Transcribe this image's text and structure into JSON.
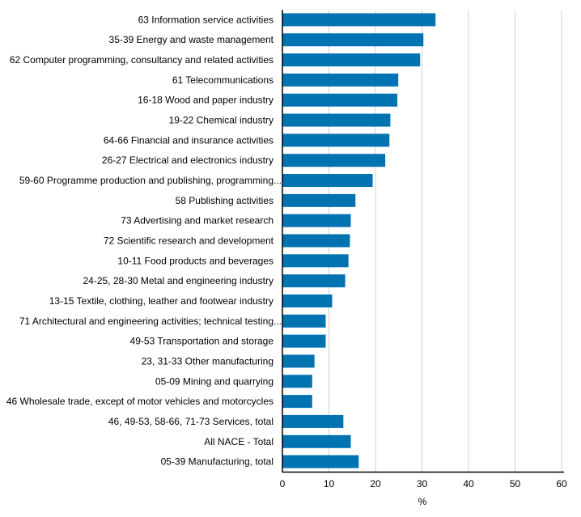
{
  "chart_data": {
    "type": "bar",
    "orientation": "horizontal",
    "categories": [
      "63 Information service activities",
      "35-39 Energy and waste management",
      "62 Computer programming, consultancy and related activities",
      "61 Telecommunications",
      "16-18 Wood and paper industry",
      "19-22 Chemical industry",
      "64-66 Financial and insurance activities",
      "26-27 Electrical and electronics industry",
      "59-60 Programme production and publishing, programming...",
      "58 Publishing activities",
      "73 Advertising and market research",
      "72 Scientific research and development",
      "10-11 Food products and beverages",
      "24-25, 28-30 Metal and engineering industry",
      "13-15 Textile, clothing, leather and footwear industry",
      "71 Architectural and engineering activities; technical testing...",
      "49-53 Transportation and storage",
      "23, 31-33 Other manufacturing",
      "05-09 Mining and quarrying",
      "46 Wholesale trade, except of motor vehicles and motorcycles",
      "46, 49-53, 58-66, 71-73 Services, total",
      "All NACE - Total",
      "05-39 Manufacturing, total"
    ],
    "values": [
      32.9,
      30.3,
      29.6,
      24.9,
      24.7,
      23.2,
      23.0,
      22.1,
      19.4,
      15.7,
      14.7,
      14.5,
      14.2,
      13.5,
      10.7,
      9.3,
      9.3,
      6.9,
      6.4,
      6.4,
      13.1,
      14.7,
      16.4
    ],
    "xlabel": "%",
    "ylabel": "",
    "xlim": [
      0,
      60
    ],
    "xticks": [
      "0",
      "10",
      "20",
      "30",
      "40",
      "50",
      "60"
    ],
    "grid": "vertical",
    "bar_color": "#0073b0",
    "grid_color": "#d0d0d0"
  }
}
